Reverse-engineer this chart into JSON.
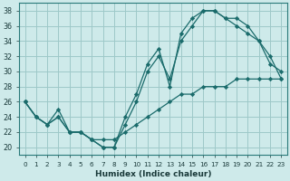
{
  "xlabel": "Humidex (Indice chaleur)",
  "bg_color": "#ceeaea",
  "grid_color": "#9ec8c8",
  "line_color": "#1a6b6b",
  "xlim": [
    -0.5,
    23.5
  ],
  "ylim": [
    19,
    39
  ],
  "xticks": [
    0,
    1,
    2,
    3,
    4,
    5,
    6,
    7,
    8,
    9,
    10,
    11,
    12,
    13,
    14,
    15,
    16,
    17,
    18,
    19,
    20,
    21,
    22,
    23
  ],
  "yticks": [
    20,
    22,
    24,
    26,
    28,
    30,
    32,
    34,
    36,
    38
  ],
  "line1_x": [
    0,
    1,
    2,
    3,
    4,
    5,
    6,
    7,
    8,
    9,
    10,
    11,
    12,
    13,
    14,
    15,
    16,
    17,
    18,
    19,
    20,
    21,
    22,
    23
  ],
  "line1_y": [
    26,
    24,
    23,
    24,
    22,
    22,
    21,
    20,
    20,
    23,
    26,
    30,
    32,
    29,
    34,
    36,
    38,
    38,
    37,
    36,
    35,
    34,
    32,
    29
  ],
  "line2_x": [
    0,
    1,
    2,
    3,
    4,
    5,
    6,
    7,
    8,
    9,
    10,
    11,
    12,
    13,
    14,
    15,
    16,
    17,
    18,
    19,
    20,
    21,
    22,
    23
  ],
  "line2_y": [
    26,
    24,
    23,
    25,
    22,
    22,
    21,
    20,
    20,
    24,
    27,
    31,
    33,
    28,
    35,
    37,
    38,
    38,
    37,
    37,
    36,
    34,
    31,
    30
  ],
  "line3_x": [
    0,
    1,
    2,
    3,
    4,
    5,
    6,
    7,
    8,
    9,
    10,
    11,
    12,
    13,
    14,
    15,
    16,
    17,
    18,
    19,
    20,
    21,
    22,
    23
  ],
  "line3_y": [
    26,
    24,
    23,
    24,
    22,
    22,
    21,
    21,
    21,
    22,
    23,
    24,
    25,
    26,
    27,
    27,
    28,
    28,
    28,
    29,
    29,
    29,
    29,
    29
  ]
}
